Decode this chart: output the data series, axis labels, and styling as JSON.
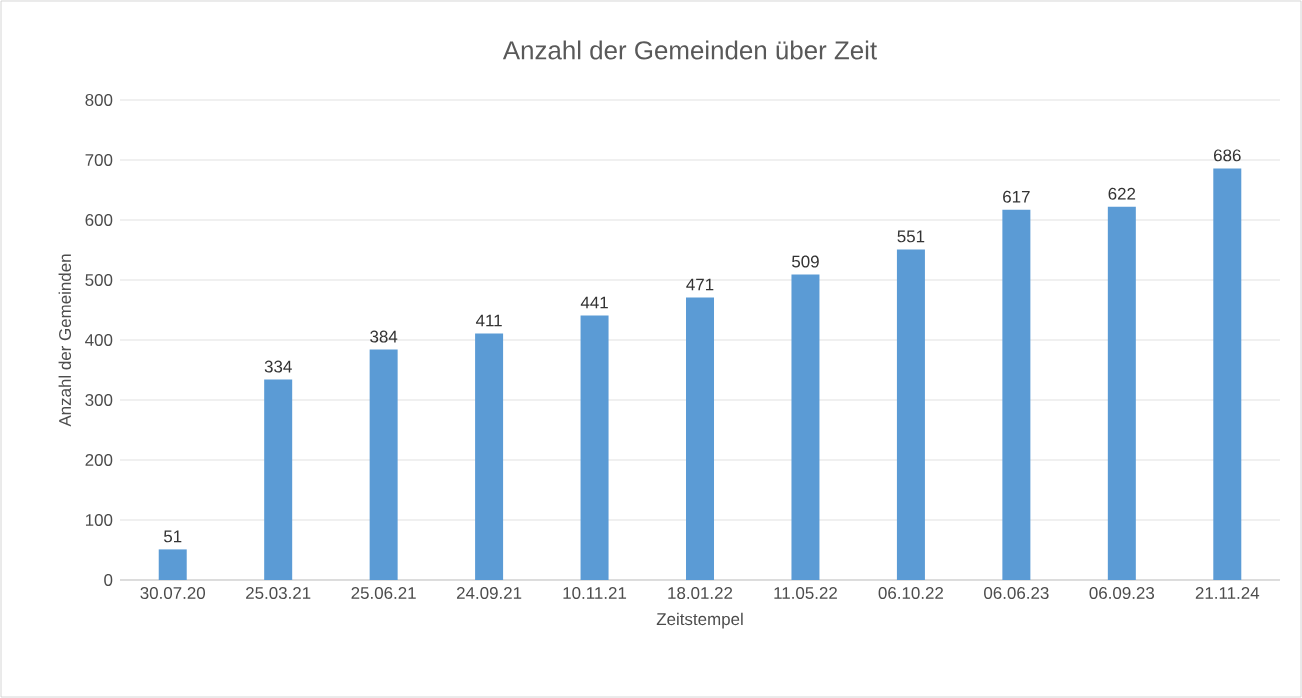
{
  "chart_data": {
    "type": "bar",
    "title": "Anzahl der Gemeinden über Zeit",
    "xlabel": "Zeitstempel",
    "ylabel": "Anzahl der Gemeinden",
    "categories": [
      "30.07.20",
      "25.03.21",
      "25.06.21",
      "24.09.21",
      "10.11.21",
      "18.01.22",
      "11.05.22",
      "06.10.22",
      "06.06.23",
      "06.09.23",
      "21.11.24"
    ],
    "values": [
      51,
      334,
      384,
      411,
      441,
      471,
      509,
      551,
      617,
      622,
      686
    ],
    "color": "#5b9bd5",
    "ylim": [
      0,
      800
    ],
    "yticks": [
      0,
      100,
      200,
      300,
      400,
      500,
      600,
      700,
      800
    ],
    "grid": "y",
    "data_labels": true
  }
}
